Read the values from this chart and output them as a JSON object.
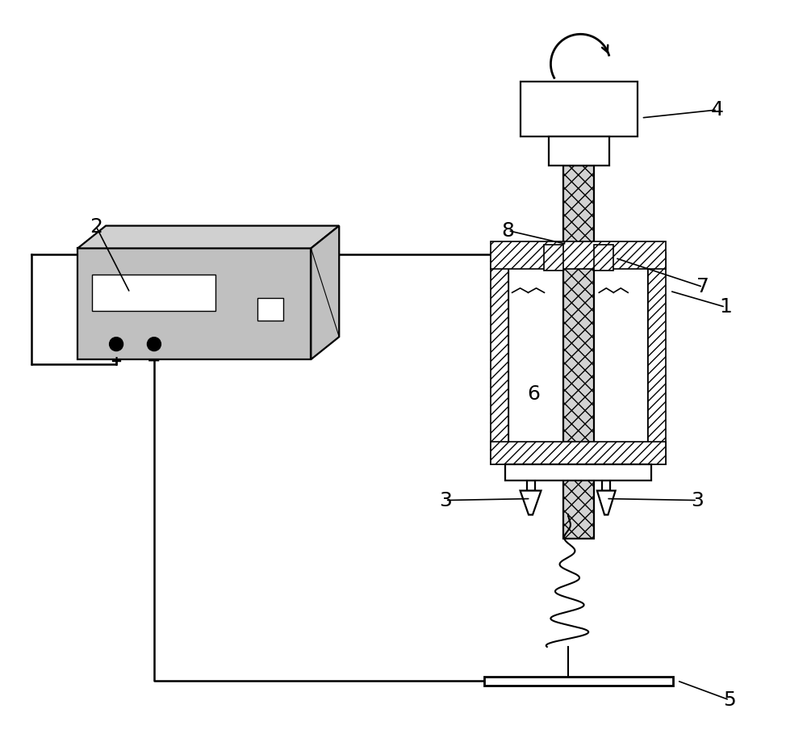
{
  "bg_color": "#ffffff",
  "lc": "#000000",
  "device_gray": "#c0c0c0",
  "device_light": "#d0d0d0",
  "lw": 1.6,
  "label_fs": 18,
  "wire_lw": 1.8,
  "hatch_lw": 1.2
}
